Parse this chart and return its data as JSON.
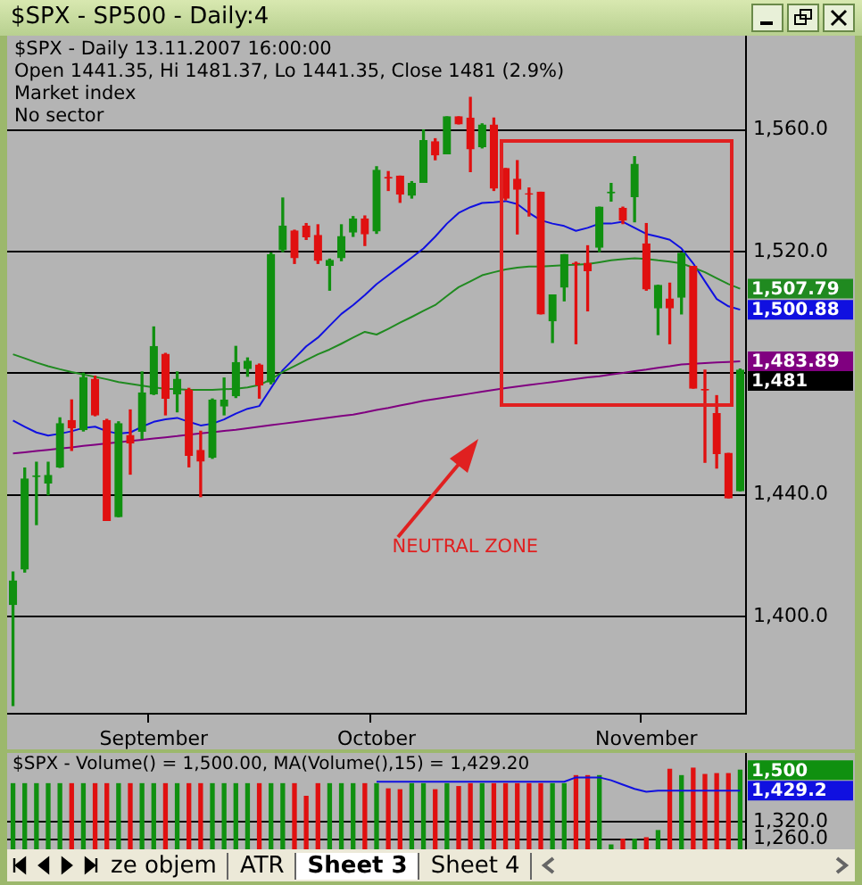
{
  "chart_data": [
    {
      "type": "candlestick",
      "title": "$SPX - SP500 - Daily:4",
      "annotations": [
        "$SPX - Daily 13.11.2007 16:00:00",
        "Open 1441.35, Hi 1481.37, Lo 1441.35, Close 1481 (2.9%)",
        "Market index",
        "No sector",
        "NEUTRAL ZONE",
        "1,507.79",
        "1,500.88",
        "1,483.89",
        "1,481"
      ],
      "categories": [
        null,
        null,
        null,
        null,
        null,
        null,
        null,
        null,
        null,
        null,
        null,
        null,
        "September",
        null,
        null,
        null,
        null,
        null,
        null,
        null,
        null,
        null,
        null,
        null,
        null,
        null,
        null,
        null,
        null,
        null,
        null,
        "October",
        null,
        null,
        null,
        null,
        null,
        null,
        null,
        null,
        null,
        null,
        null,
        null,
        null,
        null,
        null,
        null,
        null,
        null,
        null,
        null,
        null,
        null,
        "November",
        null,
        null,
        null,
        null,
        null,
        null,
        null,
        null
      ],
      "ohlc": [
        [
          1403.9,
          1414.6,
          1370.7,
          1411.7
        ],
        [
          1415.6,
          1448.8,
          1414.6,
          1445.2
        ],
        [
          1446,
          1450.7,
          1430.2,
          1446.2
        ],
        [
          1443.9,
          1450.7,
          1440,
          1446.4
        ],
        [
          1449.2,
          1465.3,
          1449,
          1463.4
        ],
        [
          1464.4,
          1471.2,
          1454.6,
          1462
        ],
        [
          1461.4,
          1480,
          1461,
          1478.6
        ],
        [
          1478,
          1479,
          1466,
          1466.3
        ],
        [
          1464.4,
          1464.8,
          1431.6,
          1431.6
        ],
        [
          1432.8,
          1464,
          1432.8,
          1463.4
        ],
        [
          1459.5,
          1467.9,
          1446.8,
          1457
        ],
        [
          1460.9,
          1480.4,
          1458.5,
          1473.5
        ],
        [
          1473.2,
          1495.2,
          1473,
          1488.8
        ],
        [
          1486.2,
          1486.5,
          1466.3,
          1471.8
        ],
        [
          1473.2,
          1480.4,
          1467.3,
          1478
        ],
        [
          1474.5,
          1475,
          1449.2,
          1453
        ],
        [
          1454.6,
          1460.9,
          1439.4,
          1451.1
        ],
        [
          1452.3,
          1471.5,
          1452,
          1471.2
        ],
        [
          1469.2,
          1478.4,
          1466.3,
          1471.2
        ],
        [
          1472.6,
          1488.8,
          1472,
          1483.5
        ],
        [
          1481.5,
          1485,
          1479,
          1483.9
        ],
        [
          1482.7,
          1483,
          1471.8,
          1476.1
        ],
        [
          1477.1,
          1519.5,
          1476.5,
          1519
        ],
        [
          1520.6,
          1537.6,
          1520,
          1528.4
        ],
        [
          1526.8,
          1527,
          1516.1,
          1518
        ],
        [
          1528.4,
          1529.2,
          1524,
          1524.9
        ],
        [
          1525.3,
          1528.8,
          1516.1,
          1517.1
        ],
        [
          1515.5,
          1517.5,
          1507.3,
          1517.1
        ],
        [
          1518,
          1528.8,
          1517,
          1524.9
        ],
        [
          1526.4,
          1531.5,
          1525,
          1530.7
        ],
        [
          1530.7,
          1531.7,
          1522,
          1525.8
        ],
        [
          1526.8,
          1547.9,
          1526,
          1546.7
        ],
        [
          1544.4,
          1546.3,
          1540.1,
          1544.2
        ],
        [
          1544.8,
          1544.8,
          1536.2,
          1538.9
        ],
        [
          1538.5,
          1543,
          1537.6,
          1542.4
        ],
        [
          1542.8,
          1560,
          1542.8,
          1556.5
        ],
        [
          1556.1,
          1557.1,
          1550.2,
          1551.8
        ],
        [
          1552.2,
          1564.3,
          1552.2,
          1564.3
        ],
        [
          1564.3,
          1564.3,
          1562,
          1562
        ],
        [
          1563.9,
          1570.7,
          1546.3,
          1553.8
        ],
        [
          1554.5,
          1562,
          1554.1,
          1561.6
        ],
        [
          1561.6,
          1563.9,
          1540.1,
          1540.9
        ],
        [
          1547.3,
          1547.3,
          1537,
          1537.6
        ],
        [
          1543.8,
          1549.9,
          1525.8,
          1540.5
        ],
        [
          1539,
          1540.9,
          1531.7,
          1538.9
        ],
        [
          1539.5,
          1539.5,
          1499.5,
          1499.5
        ],
        [
          1497.2,
          1505.7,
          1490.1,
          1505.7
        ],
        [
          1508.3,
          1519,
          1503.8,
          1519
        ],
        [
          1516.1,
          1516.5,
          1489.7,
          1516
        ],
        [
          1516.1,
          1521.9,
          1500.5,
          1513.7
        ],
        [
          1521.4,
          1534.6,
          1520,
          1534.6
        ],
        [
          1539.3,
          1542.4,
          1536.6,
          1539.5
        ],
        [
          1534.2,
          1534.6,
          1529.2,
          1530.3
        ],
        [
          1538.1,
          1551.2,
          1529.8,
          1548.7
        ],
        [
          1522.5,
          1529.2,
          1507.3,
          1507.7
        ],
        [
          1501.5,
          1508.9,
          1492.7,
          1508.9
        ],
        [
          1504.4,
          1509.6,
          1489.7,
          1501.5
        ],
        [
          1505,
          1519.4,
          1499.5,
          1519.4
        ],
        [
          1515.1,
          1515.1,
          1475.1,
          1475.1
        ],
        [
          1474.6,
          1481,
          1450.7,
          1474.5
        ],
        [
          1466.7,
          1472.6,
          1448.8,
          1453.6
        ],
        [
          1453.6,
          1453.6,
          1439,
          1439
        ],
        [
          1441.35,
          1481.37,
          1441.35,
          1481
        ]
      ],
      "series": [
        {
          "type": "line",
          "color": "#208a20",
          "values": [
            1486.2,
            1484.9,
            1483.5,
            1482.3,
            1481.3,
            1480.4,
            1479.6,
            1478.8,
            1478,
            1477.1,
            1476.5,
            1475.9,
            1475.3,
            1474.9,
            1474.7,
            1474.5,
            1474.5,
            1474.5,
            1474.7,
            1474.9,
            1475.3,
            1476.1,
            1478,
            1480.4,
            1482.3,
            1484.3,
            1486.2,
            1487.8,
            1489.7,
            1491.7,
            1493.6,
            1492.7,
            1494.6,
            1496.6,
            1498.5,
            1500.5,
            1502.4,
            1505.4,
            1508.3,
            1510.2,
            1512.2,
            1513.2,
            1514.1,
            1514.7,
            1515.1,
            1515.1,
            1515.3,
            1515.5,
            1515.7,
            1515.9,
            1516.5,
            1517.1,
            1517.5,
            1517.8,
            1517.6,
            1517.1,
            1516.7,
            1516.1,
            1514.7,
            1513.2,
            1511.2,
            1509.3,
            1507.79
          ]
        },
        {
          "type": "line",
          "color": "#1010e0",
          "values": [
            1464.4,
            1462.4,
            1460.5,
            1459.5,
            1460.1,
            1460.9,
            1462,
            1462.4,
            1460.9,
            1460.1,
            1460.5,
            1462.4,
            1464,
            1464.8,
            1465.3,
            1464,
            1462.8,
            1463.4,
            1464.8,
            1466.7,
            1468.3,
            1469.2,
            1475.1,
            1481,
            1484.9,
            1488.8,
            1491.7,
            1495.6,
            1499.5,
            1502.4,
            1505.7,
            1509.3,
            1512.2,
            1515.1,
            1518,
            1521,
            1524.9,
            1529.2,
            1532.7,
            1534.6,
            1536,
            1536.2,
            1536.6,
            1535.6,
            1532.7,
            1530.3,
            1529.2,
            1528.4,
            1526.8,
            1527.8,
            1529.2,
            1529.2,
            1529.8,
            1527.8,
            1525.8,
            1524.9,
            1523.9,
            1521,
            1516.1,
            1510.2,
            1504.4,
            1502,
            1500.88
          ]
        },
        {
          "type": "line",
          "color": "#800080",
          "values": [
            1453.6,
            1454,
            1454.4,
            1454.8,
            1455.2,
            1455.6,
            1456.1,
            1456.5,
            1456.9,
            1457.3,
            1457.7,
            1458.1,
            1458.5,
            1458.9,
            1459.3,
            1459.8,
            1460.2,
            1460.6,
            1461,
            1461.4,
            1461.9,
            1462.4,
            1462.9,
            1463.4,
            1463.9,
            1464.4,
            1464.9,
            1465.4,
            1465.9,
            1466.4,
            1467.1,
            1467.9,
            1468.6,
            1469.4,
            1470.1,
            1470.9,
            1471.5,
            1472.1,
            1472.7,
            1473.3,
            1473.9,
            1474.5,
            1475.1,
            1475.6,
            1476.1,
            1476.6,
            1477.1,
            1477.6,
            1478.1,
            1478.6,
            1479,
            1479.6,
            1480.1,
            1480.7,
            1481.2,
            1481.8,
            1482.3,
            1482.9,
            1483.1,
            1483.3,
            1483.5,
            1483.7,
            1483.89
          ]
        }
      ],
      "ylim": [
        1368,
        1591
      ],
      "yticks": [
        {
          "value": 1400,
          "label": "1,400.0"
        },
        {
          "value": 1440,
          "label": "1,440.0"
        },
        {
          "value": 1480,
          "label": null
        },
        {
          "value": 1520,
          "label": "1,520.0"
        },
        {
          "value": 1560,
          "label": "1,560.0"
        }
      ],
      "grid": "y",
      "legend": false
    },
    {
      "type": "bar",
      "title": "$SPX - Volume() = 1,500.00, MA(Volume(),15) = 1,429.20",
      "annotations": [
        "ze objem",
        "ATR",
        "Sheet 3",
        "Sheet 4",
        "1,500",
        "1,429.2"
      ],
      "categories": [
        null,
        null,
        null,
        null,
        null,
        null,
        null,
        null,
        null,
        null,
        null,
        null,
        null,
        null,
        null,
        null,
        null,
        null,
        null,
        null,
        null,
        null,
        null,
        null,
        null,
        null,
        null,
        null,
        null,
        null,
        null,
        null,
        null,
        null,
        null,
        null,
        null,
        null,
        null,
        null,
        null,
        null,
        null,
        null,
        null,
        null,
        null,
        null,
        null,
        null,
        null,
        null,
        null,
        null,
        null,
        null,
        null,
        null,
        null,
        null,
        null,
        null,
        null
      ],
      "tick_labels": "y",
      "series": [
        {
          "colors": [
            "#109010",
            "#109010",
            "#109010",
            "#109010",
            "#109010",
            "#e01010",
            "#109010",
            "#e01010",
            "#e01010",
            "#109010",
            "#e01010",
            "#109010",
            "#109010",
            "#e01010",
            "#109010",
            "#e01010",
            "#e01010",
            "#109010",
            "#109010",
            "#109010",
            "#109010",
            "#e01010",
            "#109010",
            "#109010",
            "#e01010",
            "#e01010",
            "#e01010",
            "#109010",
            "#109010",
            "#109010",
            "#e01010",
            "#109010",
            "#e01010",
            "#e01010",
            "#109010",
            "#109010",
            "#e01010",
            "#109010",
            "#e01010",
            "#e01010",
            "#109010",
            "#e01010",
            "#e01010",
            "#e01010",
            "#e01010",
            "#e01010",
            "#109010",
            "#109010",
            "#e01010",
            "#e01010",
            "#109010",
            "#109010",
            "#e01010",
            "#109010",
            "#e01010",
            "#109010",
            "#e01010",
            "#109010",
            "#e01010",
            "#e01010",
            "#e01010",
            "#e01010",
            "#109010"
          ],
          "values": [
            1453,
            1453,
            1453,
            1453,
            1453,
            1453,
            1453,
            1453,
            1453,
            1453,
            1453,
            1453,
            1453,
            1453,
            1453,
            1453,
            1453,
            1453,
            1453,
            1453,
            1453,
            1453,
            1453,
            1453,
            1453,
            1409,
            1453,
            1453,
            1453,
            1453,
            1453,
            1453,
            1435,
            1432,
            1453,
            1453,
            1432,
            1453,
            1443,
            1453,
            1453,
            1453,
            1453,
            1453,
            1453,
            1453,
            1453,
            1453,
            1481,
            1481,
            1481,
            1240,
            1260,
            1260,
            1265,
            1290,
            1503,
            1481,
            1507,
            1485,
            1488,
            1488,
            1500
          ]
        },
        {
          "type": "line",
          "color": "#1010e0",
          "values": [
            null,
            null,
            null,
            null,
            null,
            null,
            null,
            null,
            null,
            null,
            null,
            null,
            null,
            null,
            null,
            null,
            null,
            null,
            null,
            null,
            null,
            null,
            null,
            null,
            null,
            null,
            null,
            null,
            null,
            null,
            null,
            1460,
            1460,
            1460,
            1460,
            1460,
            1460,
            1460,
            1460,
            1460,
            1460,
            1460,
            1460,
            1460,
            1460,
            1460,
            1460,
            1460,
            1475,
            1475,
            1475,
            1465,
            1450,
            1435,
            1425,
            1429.2,
            1429.2,
            1429.2,
            1429.2,
            1429.2,
            1429.2,
            1429.2,
            1429.2
          ]
        }
      ],
      "ylim": [
        1225,
        1560
      ],
      "yticks": [
        {
          "value": 1260,
          "label": "1,260.0"
        },
        {
          "value": 1320,
          "label": "1,320.0"
        }
      ],
      "grid": "y",
      "legend": false
    }
  ]
}
